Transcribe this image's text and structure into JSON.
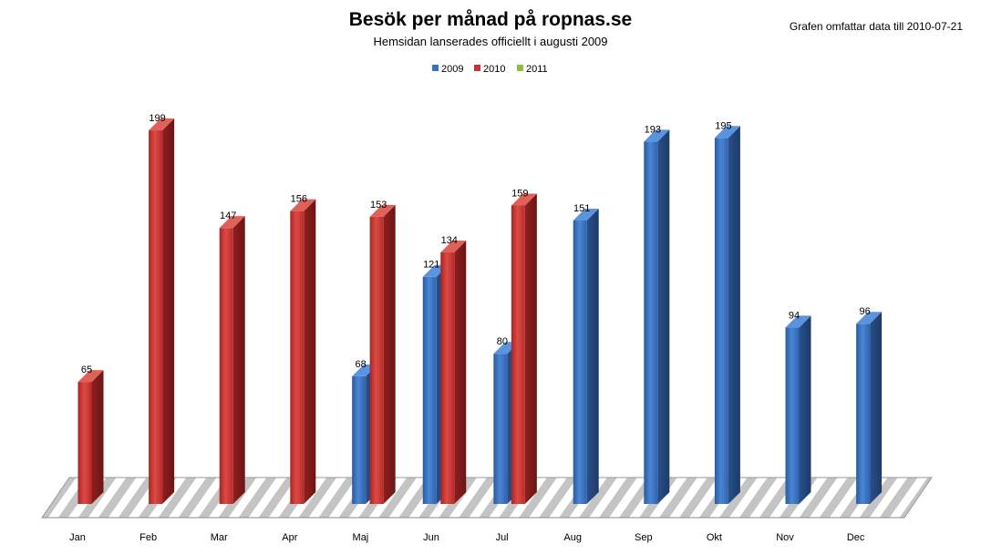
{
  "chart_data": {
    "type": "bar",
    "title": "Besök per månad på ropnas.se",
    "subtitle": "Hemsidan lanserades officiellt i augusti 2009",
    "note": "Grafen omfattar data till 2010-07-21",
    "categories": [
      "Jan",
      "Feb",
      "Mar",
      "Apr",
      "Maj",
      "Jun",
      "Jul",
      "Aug",
      "Sep",
      "Okt",
      "Nov",
      "Dec"
    ],
    "series": [
      {
        "name": "2009",
        "color": "#3a72c2",
        "values": [
          null,
          null,
          null,
          null,
          68,
          121,
          80,
          151,
          193,
          195,
          94,
          96
        ]
      },
      {
        "name": "2010",
        "color": "#c83434",
        "values": [
          65,
          199,
          147,
          156,
          153,
          134,
          159,
          null,
          null,
          null,
          null,
          null
        ]
      },
      {
        "name": "2011",
        "color": "#8fbc3b",
        "values": [
          null,
          null,
          null,
          null,
          null,
          null,
          null,
          null,
          null,
          null,
          null,
          null
        ]
      }
    ],
    "ylim": [
      0,
      210
    ],
    "legend": "top",
    "grid": false
  }
}
